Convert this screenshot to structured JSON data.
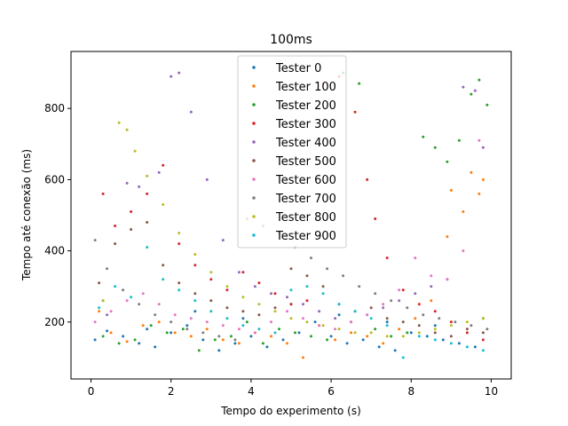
{
  "chart_data": {
    "type": "scatter",
    "title": "100ms",
    "xlabel": "Tempo do experimento (s)",
    "ylabel": "Tempo até conexão (ms)",
    "xlim": [
      -0.5,
      10.5
    ],
    "ylim": [
      40,
      960
    ],
    "xticks": [
      0,
      2,
      4,
      6,
      8,
      10
    ],
    "yticks": [
      200,
      400,
      600,
      800
    ],
    "grid": false,
    "legend_position": "top-center",
    "series": [
      {
        "name": "Tester 0",
        "color": "#1f77b4",
        "x": [
          0.1,
          0.4,
          0.8,
          1.2,
          1.6,
          2.0,
          2.4,
          2.8,
          3.2,
          3.6,
          4.0,
          4.4,
          4.8,
          5.2,
          5.6,
          6.0,
          6.4,
          6.8,
          7.2,
          7.6,
          8.0,
          8.4,
          8.8,
          9.2,
          9.6,
          0.3,
          1.4,
          2.6,
          3.8,
          5.0,
          6.2,
          7.4,
          8.6,
          9.8
        ],
        "y": [
          150,
          175,
          160,
          140,
          130,
          170,
          190,
          150,
          120,
          140,
          160,
          130,
          150,
          170,
          200,
          160,
          140,
          150,
          130,
          120,
          170,
          160,
          150,
          140,
          130,
          260,
          180,
          230,
          210,
          250,
          220,
          200,
          190,
          210
        ]
      },
      {
        "name": "Tester 100",
        "color": "#ff7f0e",
        "x": [
          0.2,
          0.5,
          0.9,
          1.3,
          1.7,
          2.1,
          2.5,
          2.9,
          3.3,
          3.7,
          4.1,
          4.5,
          4.9,
          5.3,
          5.7,
          6.1,
          6.5,
          6.9,
          7.3,
          7.7,
          8.1,
          8.5,
          8.9,
          9.3,
          9.7,
          9.5,
          9.8,
          9.0
        ],
        "y": [
          230,
          170,
          145,
          190,
          200,
          170,
          160,
          180,
          150,
          140,
          170,
          160,
          140,
          100,
          190,
          150,
          170,
          160,
          140,
          180,
          210,
          260,
          440,
          510,
          560,
          620,
          600,
          570
        ]
      },
      {
        "name": "Tester 200",
        "color": "#2ca02c",
        "x": [
          0.3,
          0.7,
          1.1,
          1.5,
          1.9,
          2.3,
          2.7,
          3.1,
          3.5,
          3.9,
          4.3,
          4.7,
          5.1,
          5.5,
          5.9,
          6.3,
          6.7,
          7.1,
          7.5,
          7.9,
          8.3,
          8.6,
          8.9,
          9.2,
          9.5,
          9.7,
          9.9
        ],
        "y": [
          160,
          140,
          150,
          190,
          170,
          180,
          120,
          150,
          160,
          200,
          140,
          180,
          170,
          160,
          150,
          900,
          870,
          180,
          160,
          170,
          720,
          690,
          650,
          710,
          840,
          880,
          810
        ]
      },
      {
        "name": "Tester 300",
        "color": "#d62728",
        "x": [
          0.3,
          0.6,
          1.0,
          1.4,
          1.8,
          2.2,
          2.6,
          3.0,
          3.4,
          3.8,
          4.2,
          4.6,
          5.0,
          5.4,
          5.8,
          6.2,
          6.6,
          6.9,
          7.1,
          7.4,
          7.8,
          8.2,
          8.6,
          9.0,
          9.4,
          9.8
        ],
        "y": [
          560,
          470,
          510,
          560,
          640,
          420,
          360,
          320,
          290,
          340,
          310,
          280,
          250,
          260,
          870,
          890,
          790,
          600,
          490,
          380,
          290,
          250,
          230,
          200,
          170,
          150
        ]
      },
      {
        "name": "Tester 400",
        "color": "#9467bd",
        "x": [
          0.4,
          0.9,
          1.2,
          1.7,
          2.0,
          2.2,
          2.5,
          2.9,
          3.3,
          3.7,
          4.1,
          4.5,
          4.9,
          5.3,
          5.7,
          6.1,
          6.5,
          6.9,
          7.3,
          7.7,
          8.1,
          8.5,
          8.9,
          9.3,
          9.6,
          9.8
        ],
        "y": [
          220,
          590,
          580,
          620,
          890,
          900,
          790,
          600,
          430,
          340,
          300,
          280,
          270,
          250,
          230,
          210,
          200,
          220,
          240,
          260,
          280,
          300,
          320,
          860,
          850,
          690
        ]
      },
      {
        "name": "Tester 500",
        "color": "#8c564b",
        "x": [
          0.2,
          0.6,
          1.0,
          1.4,
          1.8,
          2.2,
          2.6,
          3.0,
          3.4,
          3.8,
          4.2,
          4.6,
          5.0,
          5.4,
          5.8,
          6.2,
          6.6,
          7.0,
          7.4,
          7.8,
          8.2,
          8.6,
          9.0,
          9.4,
          9.8
        ],
        "y": [
          310,
          420,
          460,
          480,
          360,
          310,
          280,
          260,
          240,
          230,
          220,
          240,
          350,
          330,
          300,
          250,
          230,
          240,
          210,
          200,
          190,
          170,
          160,
          180,
          170
        ]
      },
      {
        "name": "Tester 600",
        "color": "#e377c2",
        "x": [
          0.1,
          0.5,
          0.9,
          1.3,
          1.7,
          2.1,
          2.5,
          2.9,
          3.3,
          3.7,
          4.1,
          4.5,
          4.9,
          5.3,
          5.7,
          6.1,
          6.5,
          6.9,
          7.3,
          7.7,
          8.1,
          8.5,
          8.9,
          9.3,
          9.7
        ],
        "y": [
          200,
          230,
          260,
          280,
          250,
          220,
          210,
          200,
          190,
          180,
          170,
          200,
          230,
          210,
          190,
          180,
          200,
          220,
          250,
          290,
          380,
          330,
          320,
          400,
          710
        ]
      },
      {
        "name": "Tester 700",
        "color": "#7f7f7f",
        "x": [
          0.1,
          0.4,
          0.8,
          1.2,
          1.6,
          2.0,
          2.4,
          2.8,
          3.2,
          3.6,
          3.9,
          4.3,
          4.7,
          5.1,
          5.5,
          5.9,
          6.3,
          6.7,
          7.1,
          7.5,
          7.9,
          8.3,
          8.7,
          9.1,
          9.5,
          9.9
        ],
        "y": [
          430,
          350,
          290,
          250,
          220,
          200,
          180,
          170,
          160,
          150,
          490,
          470,
          450,
          410,
          380,
          350,
          330,
          300,
          280,
          260,
          240,
          220,
          210,
          200,
          190,
          180
        ]
      },
      {
        "name": "Tester 800",
        "color": "#bcbd22",
        "x": [
          0.3,
          0.7,
          0.9,
          1.1,
          1.4,
          1.8,
          2.2,
          2.6,
          3.0,
          3.4,
          3.8,
          4.2,
          4.6,
          5.0,
          5.4,
          5.8,
          6.2,
          6.6,
          7.0,
          7.4,
          7.8,
          8.2,
          8.6,
          9.0,
          9.4,
          9.8
        ],
        "y": [
          260,
          760,
          740,
          680,
          610,
          530,
          450,
          390,
          340,
          300,
          270,
          250,
          230,
          210,
          200,
          190,
          180,
          170,
          170,
          160,
          160,
          170,
          180,
          190,
          200,
          210
        ]
      },
      {
        "name": "Tester 900",
        "color": "#17becf",
        "x": [
          0.2,
          0.6,
          1.0,
          1.4,
          1.8,
          2.2,
          2.6,
          3.0,
          3.4,
          3.8,
          4.2,
          4.6,
          5.0,
          5.4,
          5.8,
          6.2,
          6.6,
          7.0,
          7.4,
          7.8,
          8.2,
          8.6,
          9.0,
          9.4,
          9.8
        ],
        "y": [
          240,
          300,
          270,
          410,
          320,
          290,
          260,
          230,
          210,
          190,
          180,
          170,
          290,
          300,
          280,
          250,
          230,
          210,
          190,
          100,
          160,
          150,
          140,
          130,
          120
        ]
      }
    ]
  }
}
